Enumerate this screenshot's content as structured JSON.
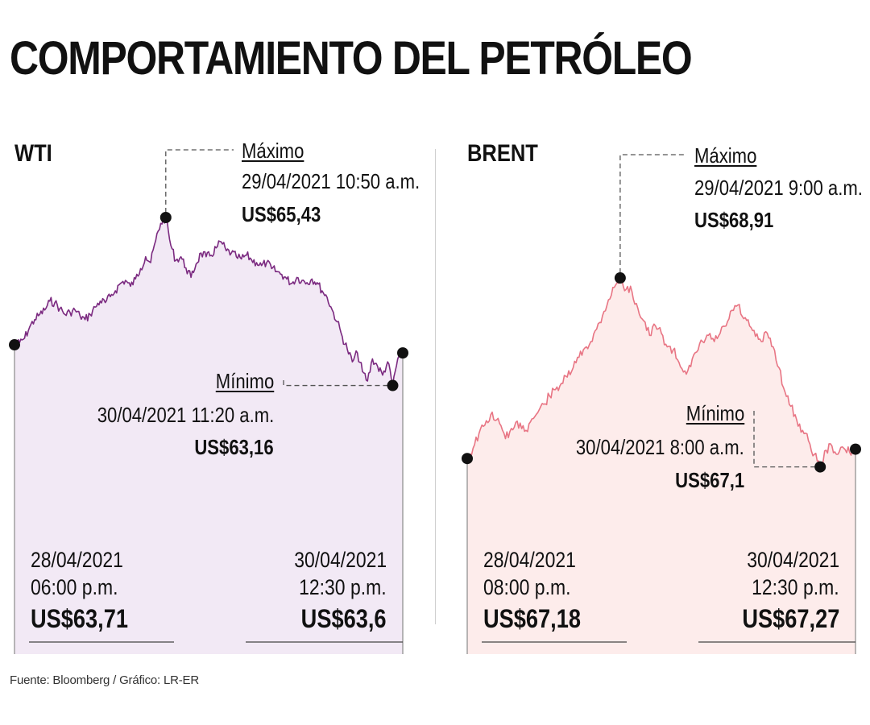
{
  "header": {
    "title": "COMPORTAMIENTO DEL PETRÓLEO"
  },
  "footer": {
    "source": "Fuente: Bloomberg / Gráfico: LR-ER"
  },
  "colors": {
    "wti_line": "#7b2a80",
    "wti_fill": "#f2e9f5",
    "brent_line": "#e87584",
    "brent_fill": "#fdeceb",
    "marker": "#111111",
    "leader": "#555555"
  },
  "chart_data": [
    {
      "type": "area",
      "title": "WTI",
      "ylim": [
        62.6,
        65.8
      ],
      "series": [
        {
          "values": [
            63.71,
            63.74,
            63.8,
            63.95,
            64.05,
            64.12,
            64.18,
            64.3,
            64.28,
            64.2,
            64.12,
            64.15,
            64.18,
            64.1,
            64.05,
            64.12,
            64.22,
            64.3,
            64.28,
            64.36,
            64.44,
            64.54,
            64.58,
            64.5,
            64.6,
            64.74,
            64.9,
            64.82,
            65.12,
            65.35,
            65.43,
            65.05,
            64.85,
            64.9,
            64.75,
            64.62,
            64.8,
            64.95,
            64.9,
            64.92,
            65.02,
            65.1,
            64.98,
            64.95,
            64.9,
            64.87,
            64.92,
            64.86,
            64.82,
            64.78,
            64.82,
            64.74,
            64.7,
            64.66,
            64.6,
            64.54,
            64.62,
            64.58,
            64.55,
            64.6,
            64.55,
            64.44,
            64.35,
            64.18,
            64.02,
            63.82,
            63.65,
            63.48,
            63.6,
            63.35,
            63.22,
            63.52,
            63.42,
            63.3,
            63.48,
            63.16,
            63.52,
            63.6
          ]
        }
      ],
      "annotations": {
        "start": {
          "date": "28/04/2021",
          "time": "06:00 p.m.",
          "value": "US$63,71"
        },
        "end": {
          "date": "30/04/2021",
          "time": "12:30 p.m.",
          "value": "US$63,6"
        },
        "max": {
          "label": "Máximo",
          "datetime": "29/04/2021 10:50 a.m.",
          "value": "US$65,43"
        },
        "min": {
          "label": "Mínimo",
          "datetime": "30/04/2021 11:20 a.m.",
          "value": "US$63,16"
        }
      }
    },
    {
      "type": "area",
      "title": "BRENT",
      "ylim": [
        66.85,
        69.35
      ],
      "series": [
        {
          "values": [
            67.18,
            67.28,
            67.42,
            67.5,
            67.6,
            67.55,
            67.45,
            67.38,
            67.48,
            67.52,
            67.45,
            67.56,
            67.62,
            67.7,
            67.78,
            67.84,
            67.9,
            67.96,
            68.05,
            68.15,
            68.24,
            68.3,
            68.42,
            68.55,
            68.7,
            68.82,
            68.91,
            68.8,
            68.78,
            68.62,
            68.5,
            68.36,
            68.45,
            68.38,
            68.25,
            68.22,
            68.1,
            68.02,
            68.06,
            68.2,
            68.3,
            68.36,
            68.3,
            68.38,
            68.45,
            68.6,
            68.65,
            68.52,
            68.45,
            68.35,
            68.3,
            68.38,
            68.25,
            68.05,
            67.82,
            67.68,
            67.55,
            67.45,
            67.35,
            67.22,
            67.1,
            67.26,
            67.3,
            67.22,
            67.28,
            67.24,
            67.27
          ]
        }
      ],
      "annotations": {
        "start": {
          "date": "28/04/2021",
          "time": "08:00 p.m.",
          "value": "US$67,18"
        },
        "end": {
          "date": "30/04/2021",
          "time": "12:30 p.m.",
          "value": "US$67,27"
        },
        "max": {
          "label": "Máximo",
          "datetime": "29/04/2021 9:00 a.m.",
          "value": "US$68,91"
        },
        "min": {
          "label": "Mínimo",
          "datetime": "30/04/2021 8:00 a.m.",
          "value": "US$67,1"
        }
      }
    }
  ]
}
